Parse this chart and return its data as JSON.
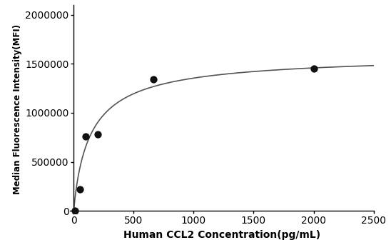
{
  "x_data": [
    10,
    50,
    100,
    200,
    666,
    2000
  ],
  "y_data": [
    5000,
    220000,
    760000,
    780000,
    1340000,
    1450000
  ],
  "xlabel": "Human CCL2 Concentration（pg/mL）",
  "ylabel": "Median Fluorescence Intensity（MFI）",
  "xlim": [
    -30,
    2500
  ],
  "ylim": [
    -30000,
    2100000
  ],
  "xticks": [
    0,
    500,
    1000,
    1500,
    2000,
    2500
  ],
  "yticks": [
    0,
    500000,
    1000000,
    1500000,
    2000000
  ],
  "ytick_labels": [
    "0",
    "500000",
    "1000000",
    "1500000",
    "2000000"
  ],
  "dot_color": "#111111",
  "line_color": "#555555",
  "dot_size": 55,
  "background_color": "#ffffff",
  "figwidth": 5.48,
  "figheight": 3.5,
  "dpi": 100
}
